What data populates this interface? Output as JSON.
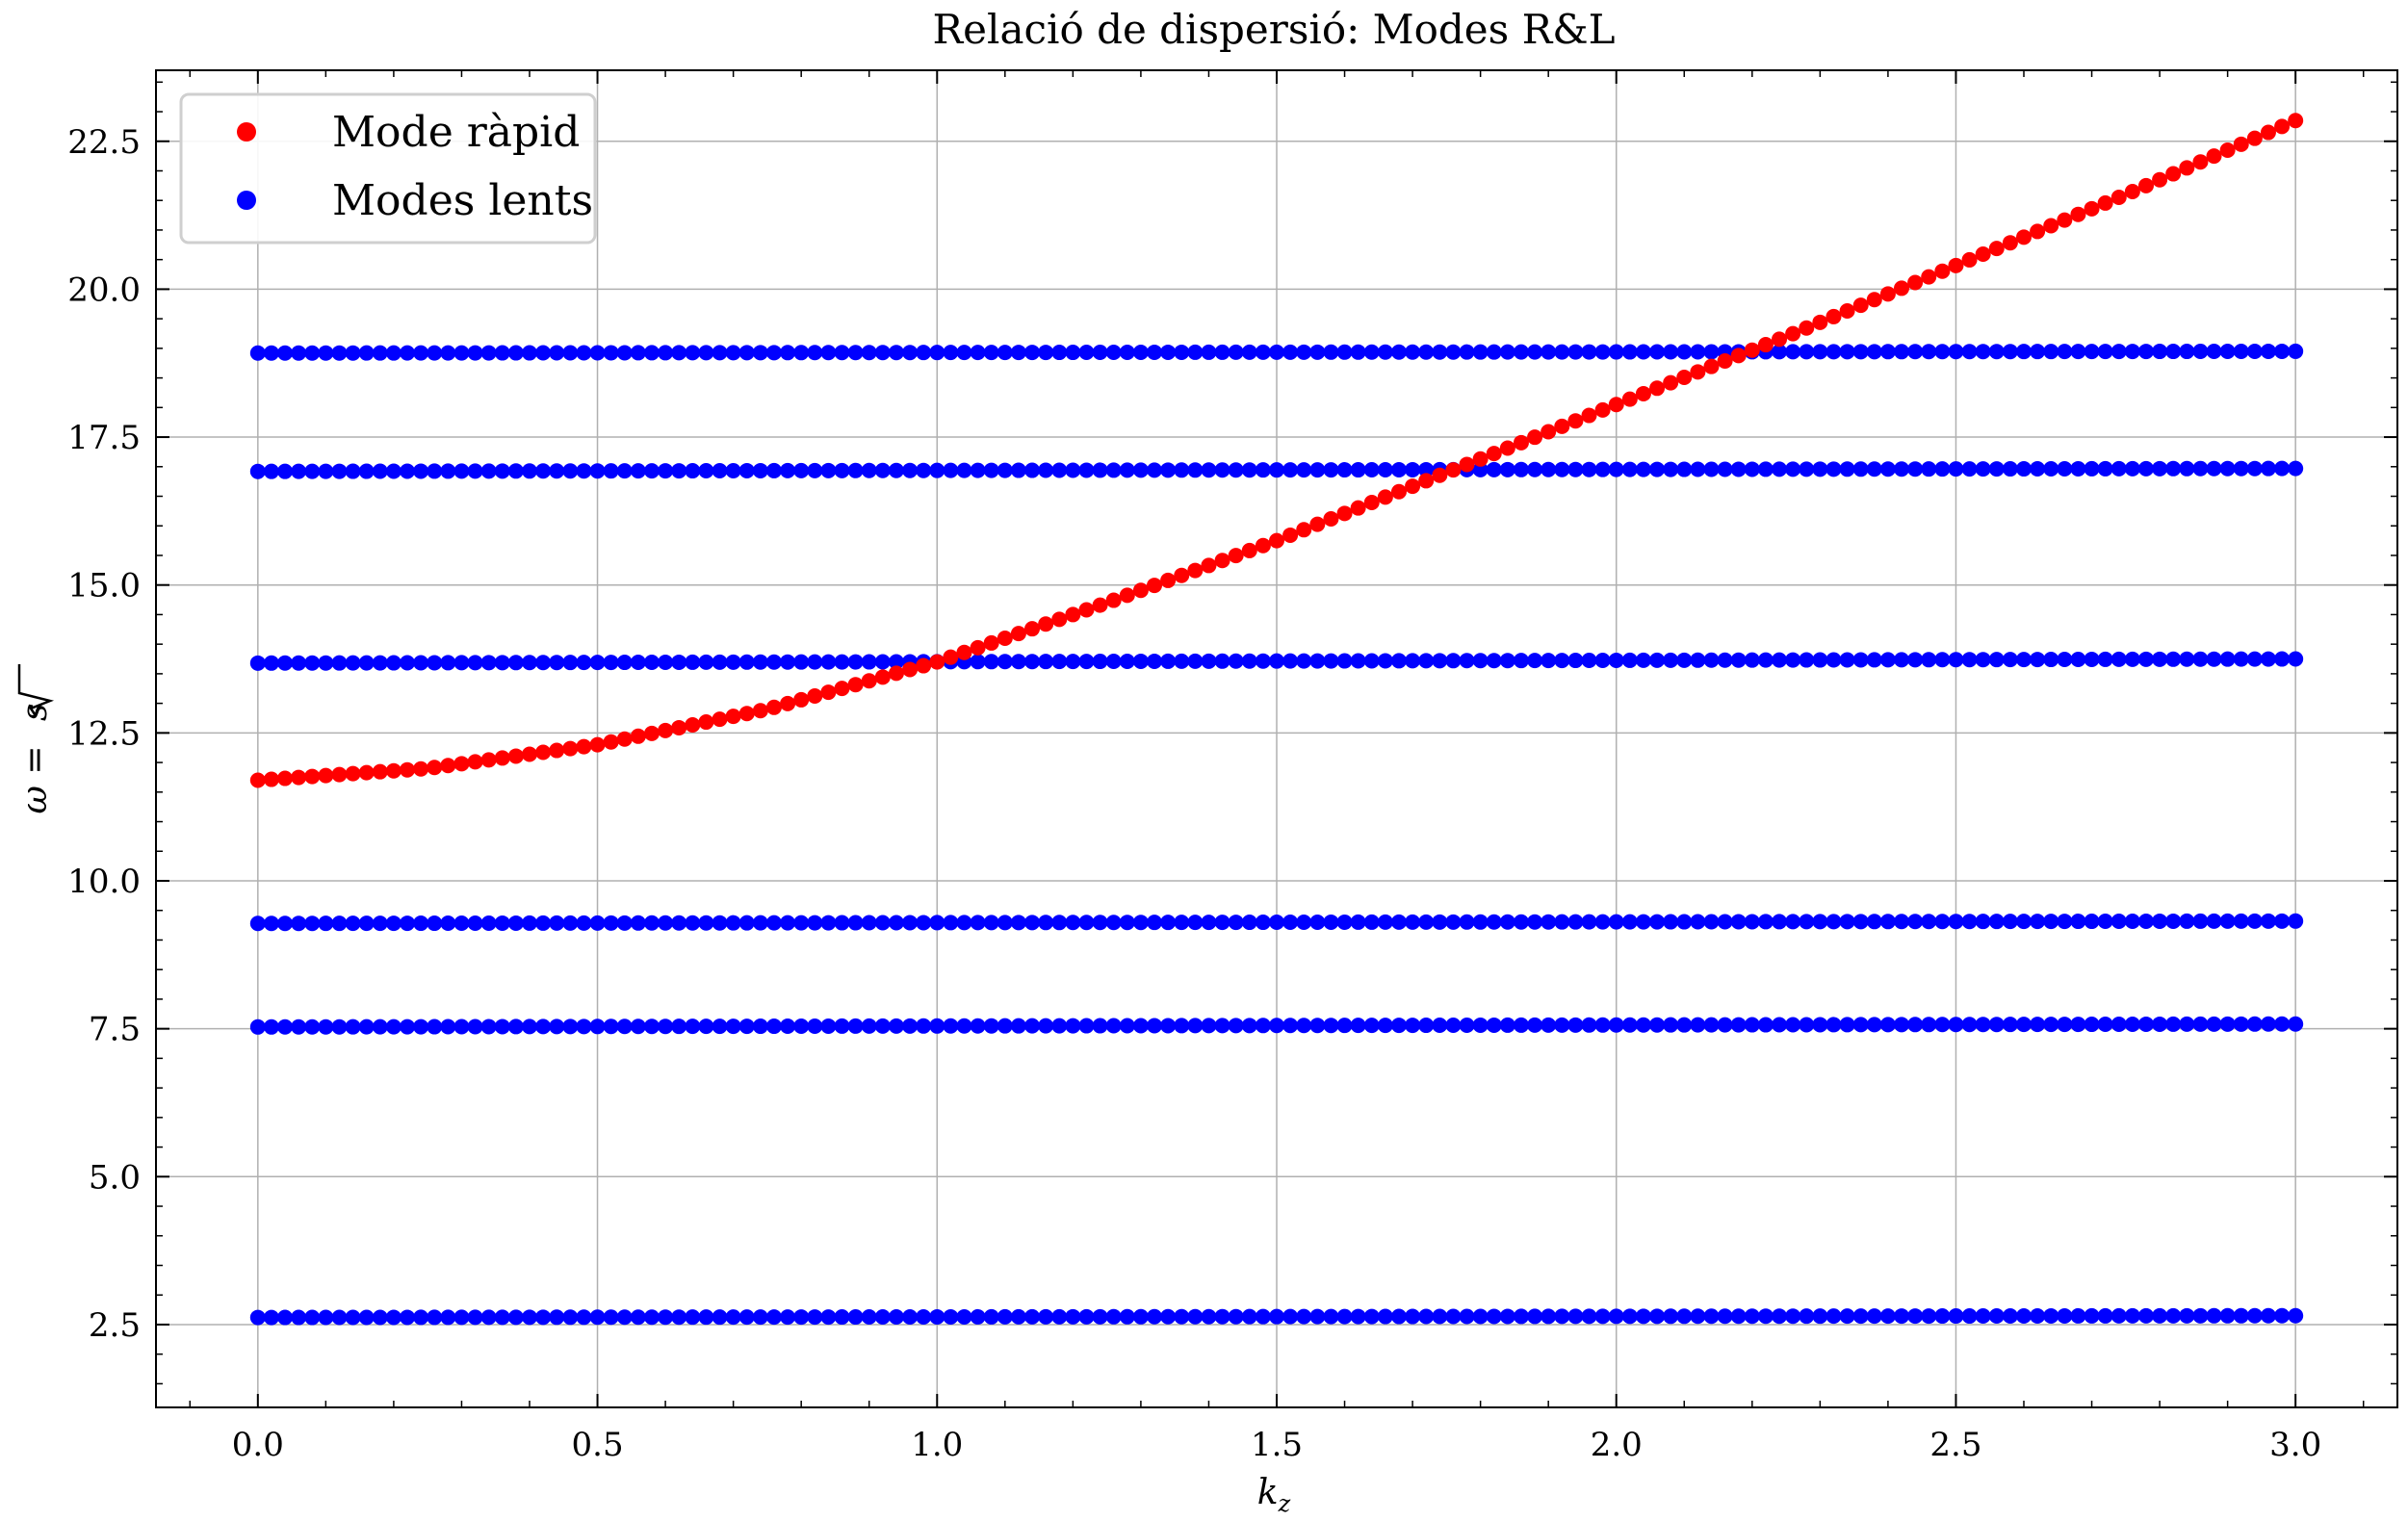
{
  "chart_data": {
    "type": "scatter",
    "title": "Relació de dispersió: Modes R&L",
    "xlabel": {
      "main": "k",
      "sub": "z"
    },
    "ylabel": {
      "prefix": "ω = ",
      "root": "s"
    },
    "xlim": [
      -0.15,
      3.15
    ],
    "ylim": [
      1.1,
      23.7
    ],
    "xticks": [
      0.0,
      0.5,
      1.0,
      1.5,
      2.0,
      2.5,
      3.0
    ],
    "xtick_labels": [
      "0.0",
      "0.5",
      "1.0",
      "1.5",
      "2.0",
      "2.5",
      "3.0"
    ],
    "yticks": [
      2.5,
      5.0,
      7.5,
      10.0,
      12.5,
      15.0,
      17.5,
      20.0,
      22.5
    ],
    "ytick_labels": [
      "2.5",
      "5.0",
      "7.5",
      "10.0",
      "12.5",
      "15.0",
      "17.5",
      "20.0",
      "22.5"
    ],
    "grid": true,
    "legend_position": "top-left",
    "point_count_per_series": 151,
    "series": [
      {
        "name": "Mode ràpid",
        "color": "#ff0000",
        "kind": "fast",
        "x_range": [
          0.0,
          3.0
        ],
        "k_samples": [
          0.0,
          0.25,
          0.5,
          0.75,
          1.0,
          1.25,
          1.5,
          1.75,
          2.0,
          2.25,
          2.5,
          2.75,
          3.0
        ],
        "omega_samples": [
          11.7,
          11.9,
          12.3,
          12.9,
          13.7,
          14.7,
          15.75,
          16.9,
          18.05,
          19.2,
          20.4,
          21.6,
          22.85
        ]
      },
      {
        "name": "Modes lents",
        "color": "#0000ff",
        "kind": "slow",
        "x_range": [
          0.0,
          3.0
        ],
        "branches": [
          {
            "omega_start": 2.62,
            "omega_end": 2.65
          },
          {
            "omega_start": 7.53,
            "omega_end": 7.58
          },
          {
            "omega_start": 9.28,
            "omega_end": 9.32
          },
          {
            "omega_start": 13.68,
            "omega_end": 13.75
          },
          {
            "omega_start": 16.92,
            "omega_end": 16.97
          },
          {
            "omega_start": 18.92,
            "omega_end": 18.95
          }
        ]
      }
    ]
  }
}
